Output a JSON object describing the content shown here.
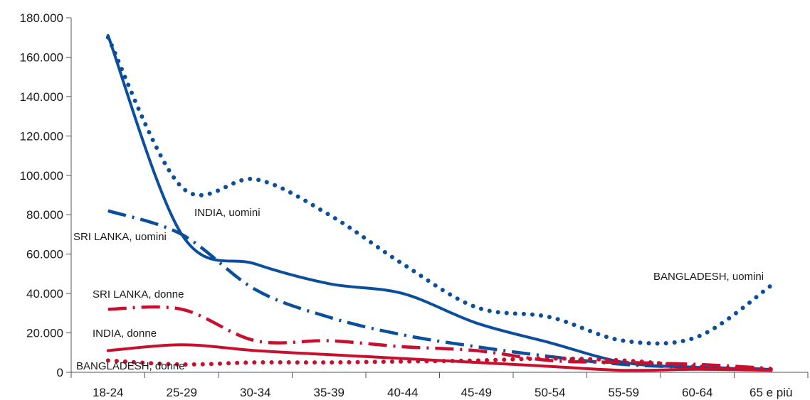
{
  "chart_data": {
    "type": "line",
    "title": "",
    "xlabel": "",
    "ylabel": "",
    "categories": [
      "18-24",
      "25-29",
      "30-34",
      "35-39",
      "40-44",
      "45-49",
      "50-54",
      "55-59",
      "60-64",
      "65 e più"
    ],
    "ylim": [
      0,
      180000
    ],
    "yticks": [
      0,
      20000,
      40000,
      60000,
      80000,
      100000,
      120000,
      140000,
      160000,
      180000
    ],
    "ytick_labels": [
      "0",
      "20.000",
      "40.000",
      "60.000",
      "80.000",
      "100.000",
      "120.000",
      "140.000",
      "160.000",
      "180.000"
    ],
    "grid": false,
    "legend": "inline labels",
    "series": [
      {
        "name": "BANGLADESH, uomini",
        "color": "#0b4f9c",
        "style": "dotted",
        "values": [
          170000,
          94000,
          98000,
          80000,
          55000,
          33000,
          28000,
          16000,
          18000,
          44000
        ]
      },
      {
        "name": "INDIA, uomini",
        "color": "#0b4f9c",
        "style": "solid",
        "values": [
          171000,
          70000,
          55000,
          45000,
          40000,
          25000,
          15000,
          5000,
          2500,
          1500
        ]
      },
      {
        "name": "SRI LANKA, uomini",
        "color": "#0b4f9c",
        "style": "dashdot",
        "values": [
          82000,
          70000,
          42000,
          28000,
          19000,
          13000,
          8000,
          4000,
          2500,
          1500
        ]
      },
      {
        "name": "SRI LANKA, donne",
        "color": "#c8102e",
        "style": "dashdot",
        "values": [
          32000,
          32000,
          16000,
          16000,
          13000,
          11000,
          6000,
          5000,
          4000,
          2000
        ]
      },
      {
        "name": "INDIA, donne",
        "color": "#c8102e",
        "style": "solid",
        "values": [
          11000,
          14000,
          11000,
          9000,
          7000,
          5000,
          3000,
          1000,
          1500,
          1000
        ]
      },
      {
        "name": "BANGLADESH, donne",
        "color": "#c8102e",
        "style": "dotted",
        "values": [
          6000,
          4000,
          5000,
          5000,
          5500,
          6000,
          7000,
          6000,
          3000,
          1500
        ]
      }
    ]
  }
}
